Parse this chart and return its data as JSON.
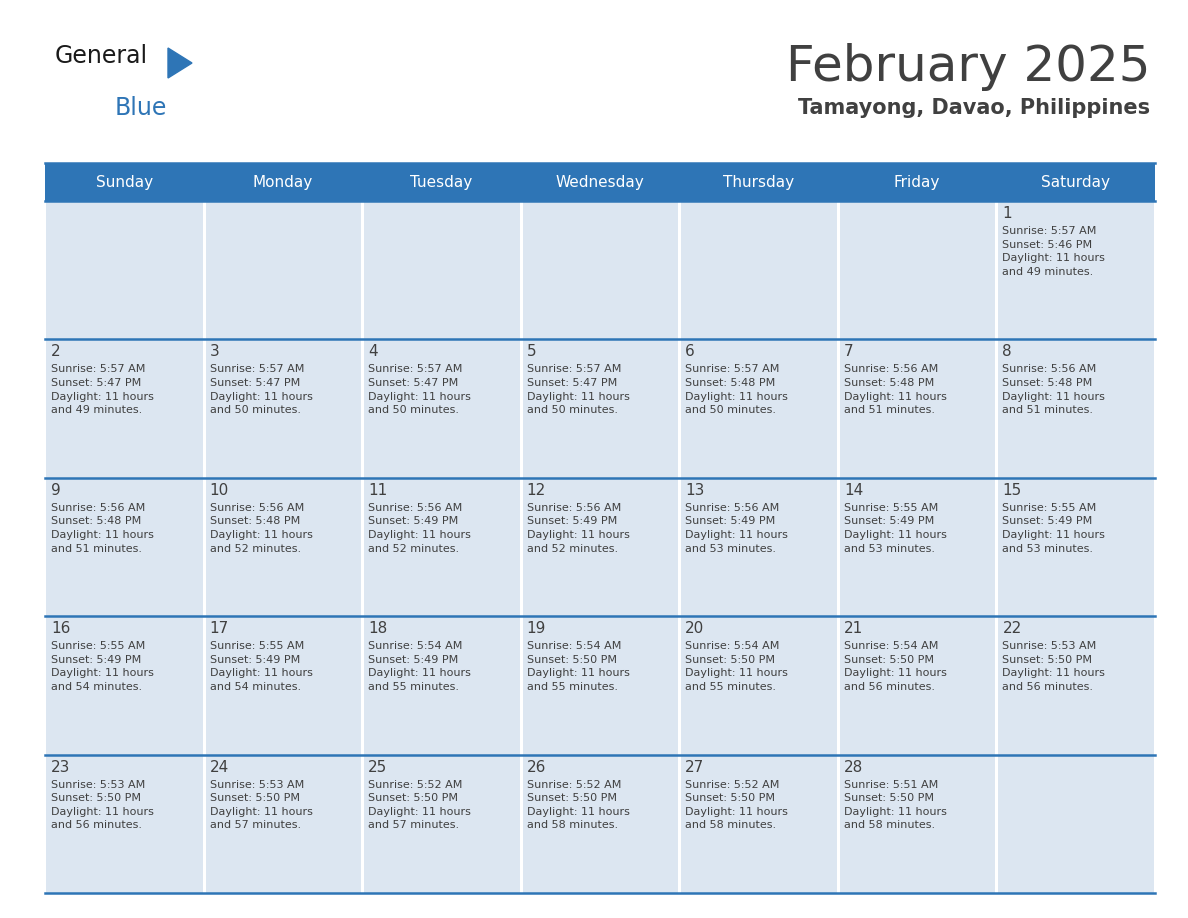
{
  "title": "February 2025",
  "subtitle": "Tamayong, Davao, Philippines",
  "header_color": "#2e75b6",
  "header_text_color": "#ffffff",
  "cell_bg_color": "#dce6f1",
  "cell_bg_empty": "#dce6f1",
  "border_color": "#2e75b6",
  "text_color": "#404040",
  "white": "#ffffff",
  "days_of_week": [
    "Sunday",
    "Monday",
    "Tuesday",
    "Wednesday",
    "Thursday",
    "Friday",
    "Saturday"
  ],
  "weeks": [
    [
      {
        "day": null,
        "info": null
      },
      {
        "day": null,
        "info": null
      },
      {
        "day": null,
        "info": null
      },
      {
        "day": null,
        "info": null
      },
      {
        "day": null,
        "info": null
      },
      {
        "day": null,
        "info": null
      },
      {
        "day": 1,
        "info": "Sunrise: 5:57 AM\nSunset: 5:46 PM\nDaylight: 11 hours\nand 49 minutes."
      }
    ],
    [
      {
        "day": 2,
        "info": "Sunrise: 5:57 AM\nSunset: 5:47 PM\nDaylight: 11 hours\nand 49 minutes."
      },
      {
        "day": 3,
        "info": "Sunrise: 5:57 AM\nSunset: 5:47 PM\nDaylight: 11 hours\nand 50 minutes."
      },
      {
        "day": 4,
        "info": "Sunrise: 5:57 AM\nSunset: 5:47 PM\nDaylight: 11 hours\nand 50 minutes."
      },
      {
        "day": 5,
        "info": "Sunrise: 5:57 AM\nSunset: 5:47 PM\nDaylight: 11 hours\nand 50 minutes."
      },
      {
        "day": 6,
        "info": "Sunrise: 5:57 AM\nSunset: 5:48 PM\nDaylight: 11 hours\nand 50 minutes."
      },
      {
        "day": 7,
        "info": "Sunrise: 5:56 AM\nSunset: 5:48 PM\nDaylight: 11 hours\nand 51 minutes."
      },
      {
        "day": 8,
        "info": "Sunrise: 5:56 AM\nSunset: 5:48 PM\nDaylight: 11 hours\nand 51 minutes."
      }
    ],
    [
      {
        "day": 9,
        "info": "Sunrise: 5:56 AM\nSunset: 5:48 PM\nDaylight: 11 hours\nand 51 minutes."
      },
      {
        "day": 10,
        "info": "Sunrise: 5:56 AM\nSunset: 5:48 PM\nDaylight: 11 hours\nand 52 minutes."
      },
      {
        "day": 11,
        "info": "Sunrise: 5:56 AM\nSunset: 5:49 PM\nDaylight: 11 hours\nand 52 minutes."
      },
      {
        "day": 12,
        "info": "Sunrise: 5:56 AM\nSunset: 5:49 PM\nDaylight: 11 hours\nand 52 minutes."
      },
      {
        "day": 13,
        "info": "Sunrise: 5:56 AM\nSunset: 5:49 PM\nDaylight: 11 hours\nand 53 minutes."
      },
      {
        "day": 14,
        "info": "Sunrise: 5:55 AM\nSunset: 5:49 PM\nDaylight: 11 hours\nand 53 minutes."
      },
      {
        "day": 15,
        "info": "Sunrise: 5:55 AM\nSunset: 5:49 PM\nDaylight: 11 hours\nand 53 minutes."
      }
    ],
    [
      {
        "day": 16,
        "info": "Sunrise: 5:55 AM\nSunset: 5:49 PM\nDaylight: 11 hours\nand 54 minutes."
      },
      {
        "day": 17,
        "info": "Sunrise: 5:55 AM\nSunset: 5:49 PM\nDaylight: 11 hours\nand 54 minutes."
      },
      {
        "day": 18,
        "info": "Sunrise: 5:54 AM\nSunset: 5:49 PM\nDaylight: 11 hours\nand 55 minutes."
      },
      {
        "day": 19,
        "info": "Sunrise: 5:54 AM\nSunset: 5:50 PM\nDaylight: 11 hours\nand 55 minutes."
      },
      {
        "day": 20,
        "info": "Sunrise: 5:54 AM\nSunset: 5:50 PM\nDaylight: 11 hours\nand 55 minutes."
      },
      {
        "day": 21,
        "info": "Sunrise: 5:54 AM\nSunset: 5:50 PM\nDaylight: 11 hours\nand 56 minutes."
      },
      {
        "day": 22,
        "info": "Sunrise: 5:53 AM\nSunset: 5:50 PM\nDaylight: 11 hours\nand 56 minutes."
      }
    ],
    [
      {
        "day": 23,
        "info": "Sunrise: 5:53 AM\nSunset: 5:50 PM\nDaylight: 11 hours\nand 56 minutes."
      },
      {
        "day": 24,
        "info": "Sunrise: 5:53 AM\nSunset: 5:50 PM\nDaylight: 11 hours\nand 57 minutes."
      },
      {
        "day": 25,
        "info": "Sunrise: 5:52 AM\nSunset: 5:50 PM\nDaylight: 11 hours\nand 57 minutes."
      },
      {
        "day": 26,
        "info": "Sunrise: 5:52 AM\nSunset: 5:50 PM\nDaylight: 11 hours\nand 58 minutes."
      },
      {
        "day": 27,
        "info": "Sunrise: 5:52 AM\nSunset: 5:50 PM\nDaylight: 11 hours\nand 58 minutes."
      },
      {
        "day": 28,
        "info": "Sunrise: 5:51 AM\nSunset: 5:50 PM\nDaylight: 11 hours\nand 58 minutes."
      },
      {
        "day": null,
        "info": null
      }
    ]
  ],
  "logo_general_color": "#1a1a1a",
  "logo_blue_color": "#2e75b6",
  "logo_triangle_color": "#2e75b6",
  "title_fontsize": 36,
  "subtitle_fontsize": 15,
  "dow_fontsize": 11,
  "day_num_fontsize": 11,
  "info_fontsize": 8
}
